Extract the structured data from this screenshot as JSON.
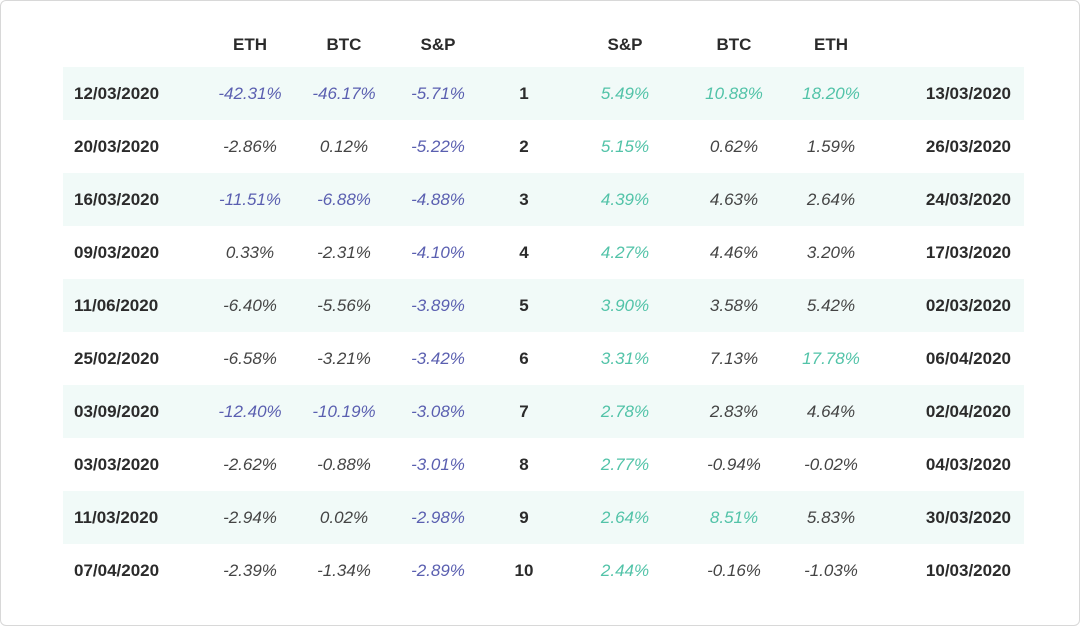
{
  "colors": {
    "negative_highlight": "#5a5fb0",
    "positive_highlight": "#52c3a8",
    "row_stripe": "#f1faf8"
  },
  "chart_data": {
    "type": "table",
    "headers": [
      "",
      "ETH",
      "BTC",
      "S&P",
      "",
      "S&P",
      "BTC",
      "ETH",
      ""
    ],
    "rows": [
      {
        "date_left": "12/03/2020",
        "eth_l": "-42.31%",
        "btc_l": "-46.17%",
        "sp_l": "-5.71%",
        "rank": "1",
        "sp_r": "5.49%",
        "btc_r": "10.88%",
        "eth_r": "18.20%",
        "date_right": "13/03/2020",
        "hl": [
          "eth_l",
          "btc_l",
          "sp_l",
          "sp_r",
          "btc_r",
          "eth_r"
        ]
      },
      {
        "date_left": "20/03/2020",
        "eth_l": "-2.86%",
        "btc_l": "0.12%",
        "sp_l": "-5.22%",
        "rank": "2",
        "sp_r": "5.15%",
        "btc_r": "0.62%",
        "eth_r": "1.59%",
        "date_right": "26/03/2020",
        "hl": [
          "sp_l",
          "sp_r"
        ]
      },
      {
        "date_left": "16/03/2020",
        "eth_l": "-11.51%",
        "btc_l": "-6.88%",
        "sp_l": "-4.88%",
        "rank": "3",
        "sp_r": "4.39%",
        "btc_r": "4.63%",
        "eth_r": "2.64%",
        "date_right": "24/03/2020",
        "hl": [
          "eth_l",
          "btc_l",
          "sp_l",
          "sp_r"
        ]
      },
      {
        "date_left": "09/03/2020",
        "eth_l": "0.33%",
        "btc_l": "-2.31%",
        "sp_l": "-4.10%",
        "rank": "4",
        "sp_r": "4.27%",
        "btc_r": "4.46%",
        "eth_r": "3.20%",
        "date_right": "17/03/2020",
        "hl": [
          "sp_l",
          "sp_r"
        ]
      },
      {
        "date_left": "11/06/2020",
        "eth_l": "-6.40%",
        "btc_l": "-5.56%",
        "sp_l": "-3.89%",
        "rank": "5",
        "sp_r": "3.90%",
        "btc_r": "3.58%",
        "eth_r": "5.42%",
        "date_right": "02/03/2020",
        "hl": [
          "sp_l",
          "sp_r"
        ]
      },
      {
        "date_left": "25/02/2020",
        "eth_l": "-6.58%",
        "btc_l": "-3.21%",
        "sp_l": "-3.42%",
        "rank": "6",
        "sp_r": "3.31%",
        "btc_r": "7.13%",
        "eth_r": "17.78%",
        "date_right": "06/04/2020",
        "hl": [
          "sp_l",
          "sp_r",
          "eth_r"
        ]
      },
      {
        "date_left": "03/09/2020",
        "eth_l": "-12.40%",
        "btc_l": "-10.19%",
        "sp_l": "-3.08%",
        "rank": "7",
        "sp_r": "2.78%",
        "btc_r": "2.83%",
        "eth_r": "4.64%",
        "date_right": "02/04/2020",
        "hl": [
          "eth_l",
          "btc_l",
          "sp_l",
          "sp_r"
        ]
      },
      {
        "date_left": "03/03/2020",
        "eth_l": "-2.62%",
        "btc_l": "-0.88%",
        "sp_l": "-3.01%",
        "rank": "8",
        "sp_r": "2.77%",
        "btc_r": "-0.94%",
        "eth_r": "-0.02%",
        "date_right": "04/03/2020",
        "hl": [
          "sp_l",
          "sp_r"
        ]
      },
      {
        "date_left": "11/03/2020",
        "eth_l": "-2.94%",
        "btc_l": "0.02%",
        "sp_l": "-2.98%",
        "rank": "9",
        "sp_r": "2.64%",
        "btc_r": "8.51%",
        "eth_r": "5.83%",
        "date_right": "30/03/2020",
        "hl": [
          "sp_l",
          "sp_r",
          "btc_r"
        ]
      },
      {
        "date_left": "07/04/2020",
        "eth_l": "-2.39%",
        "btc_l": "-1.34%",
        "sp_l": "-2.89%",
        "rank": "10",
        "sp_r": "2.44%",
        "btc_r": "-0.16%",
        "eth_r": "-1.03%",
        "date_right": "10/03/2020",
        "hl": [
          "sp_l",
          "sp_r"
        ]
      }
    ]
  }
}
